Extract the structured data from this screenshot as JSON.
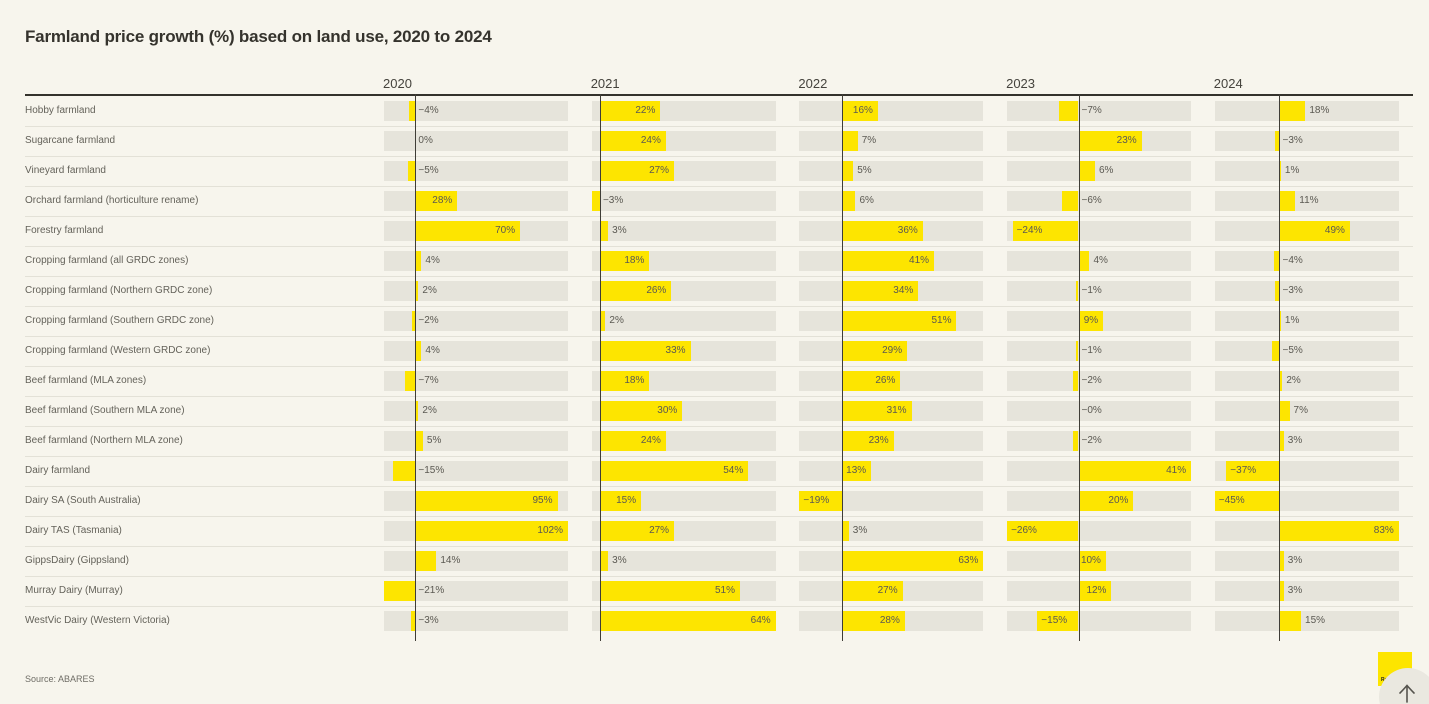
{
  "header": {
    "title": "Farmland price growth (%) based on land use, 2020 to 2024"
  },
  "chart_data": {
    "type": "bar",
    "orientation": "horizontal",
    "title": "Farmland price growth (%) based on land use, 2020 to 2024",
    "categories": [
      "Hobby farmland",
      "Sugarcane farmland",
      "Vineyard farmland",
      "Orchard farmland (horticulture rename)",
      "Forestry farmland",
      "Cropping farmland (all GRDC zones)",
      "Cropping farmland (Northern GRDC zone)",
      "Cropping farmland (Southern GRDC zone)",
      "Cropping farmland (Western GRDC zone)",
      "Beef farmland (MLA zones)",
      "Beef farmland (Southern MLA zone)",
      "Beef farmland (Northern MLA zone)",
      "Dairy farmland",
      "Dairy SA (South Australia)",
      "Dairy TAS (Tasmania)",
      "GippsDairy (Gippsland)",
      "Murray Dairy (Murray)",
      "WestVic Dairy (Western Victoria)"
    ],
    "series": [
      {
        "name": "2020",
        "values": [
          -4,
          0,
          -5,
          28,
          70,
          4,
          2,
          -2,
          4,
          -7,
          2,
          5,
          -15,
          95,
          102,
          14,
          -21,
          -3
        ],
        "labels": [
          "−4%",
          "0%",
          "−5%",
          "28%",
          "70%",
          "4%",
          "2%",
          "−2%",
          "4%",
          "−7%",
          "2%",
          "5%",
          "−15%",
          "95%",
          "102%",
          "14%",
          "−21%",
          "−3%"
        ]
      },
      {
        "name": "2021",
        "values": [
          22,
          24,
          27,
          -3,
          3,
          18,
          26,
          2,
          33,
          18,
          30,
          24,
          54,
          15,
          27,
          3,
          51,
          64
        ],
        "labels": [
          "22%",
          "24%",
          "27%",
          "−3%",
          "3%",
          "18%",
          "26%",
          "2%",
          "33%",
          "18%",
          "30%",
          "24%",
          "54%",
          "15%",
          "27%",
          "3%",
          "51%",
          "64%"
        ]
      },
      {
        "name": "2022",
        "values": [
          16,
          7,
          5,
          6,
          36,
          41,
          34,
          51,
          29,
          26,
          31,
          23,
          13,
          -19,
          3,
          63,
          27,
          28
        ],
        "labels": [
          "16%",
          "7%",
          "5%",
          "6%",
          "36%",
          "41%",
          "34%",
          "51%",
          "29%",
          "26%",
          "31%",
          "23%",
          "13%",
          "−19%",
          "3%",
          "63%",
          "27%",
          "28%"
        ]
      },
      {
        "name": "2023",
        "values": [
          -7,
          23,
          6,
          -6,
          -24,
          4,
          -1,
          9,
          -1,
          -2,
          0,
          -2,
          41,
          20,
          -26,
          10,
          12,
          -15
        ],
        "labels": [
          "−7%",
          "23%",
          "6%",
          "−6%",
          "−24%",
          "4%",
          "−1%",
          "9%",
          "−1%",
          "−2%",
          "−0%",
          "−2%",
          "41%",
          "20%",
          "−26%",
          "10%",
          "12%",
          "−15%"
        ]
      },
      {
        "name": "2024",
        "values": [
          18,
          -3,
          1,
          11,
          49,
          -4,
          -3,
          1,
          -5,
          2,
          7,
          3,
          -37,
          -45,
          83,
          3,
          3,
          15
        ],
        "labels": [
          "18%",
          "−3%",
          "1%",
          "11%",
          "49%",
          "−4%",
          "−3%",
          "1%",
          "−5%",
          "2%",
          "7%",
          "3%",
          "−37%",
          "−45%",
          "83%",
          "3%",
          "3%",
          "15%"
        ]
      }
    ],
    "axis": "each year column scaled independently from its min to max value, zero line marked",
    "grid": false,
    "legend_position": "none",
    "bar_color": "#fde500",
    "track_color": "#e6e4db"
  },
  "footer": {
    "source": "Source: ABARES"
  },
  "logo": {
    "text": "RayWhite",
    "color": "#fde500"
  },
  "scroll_top": {
    "icon": "arrow-up-icon"
  }
}
